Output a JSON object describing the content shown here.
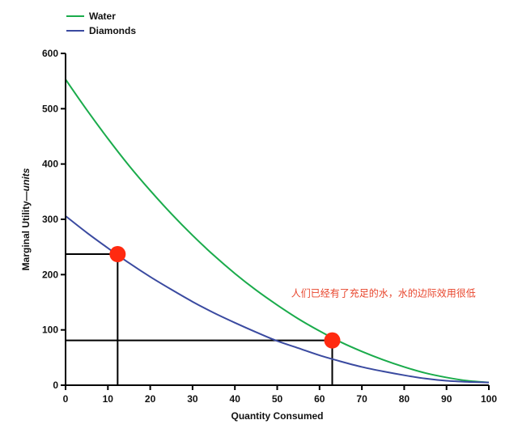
{
  "chart_data": {
    "type": "line",
    "title": "",
    "xlabel": "Quantity Consumed",
    "ylabel_main": "Marginal Utility—",
    "ylabel_unit": "units",
    "xlim": [
      0,
      100
    ],
    "ylim": [
      0,
      600
    ],
    "x_ticks": [
      0,
      10,
      20,
      30,
      40,
      50,
      60,
      70,
      80,
      90,
      100
    ],
    "y_ticks": [
      0,
      100,
      200,
      300,
      400,
      500,
      600
    ],
    "legend_position": "top-left",
    "series": [
      {
        "name": "Water",
        "color": "#1aab4b",
        "x": [
          0,
          5,
          10,
          15,
          20,
          25,
          30,
          35,
          40,
          45,
          50,
          55,
          60,
          65,
          70,
          75,
          80,
          85,
          90,
          95,
          100
        ],
        "y": [
          553,
          498,
          446,
          397,
          352,
          310,
          271,
          235,
          202,
          172,
          145,
          120,
          98,
          78,
          61,
          46,
          33,
          22,
          14,
          8,
          5
        ]
      },
      {
        "name": "Diamonds",
        "color": "#3a4aa0",
        "x": [
          0,
          5,
          10,
          15,
          20,
          25,
          30,
          35,
          40,
          45,
          50,
          55,
          60,
          65,
          70,
          75,
          80,
          85,
          90,
          95,
          100
        ],
        "y": [
          306,
          276,
          248,
          221,
          196,
          173,
          151,
          131,
          113,
          96,
          80,
          67,
          54,
          43,
          33,
          25,
          18,
          12,
          8,
          6,
          5
        ]
      }
    ],
    "highlight_points": [
      {
        "series": "Diamonds",
        "x": 12.3,
        "y": 237,
        "color": "#ff2a10"
      },
      {
        "series": "Water",
        "x": 63,
        "y": 81,
        "color": "#ff2a10"
      }
    ],
    "guides": [
      {
        "x": 12.3,
        "y": 237
      },
      {
        "x": 63,
        "y": 81
      }
    ],
    "annotation": {
      "text": "人们已经有了充足的水，水的边际效用很低",
      "x": 60,
      "y": 160,
      "color": "#e8452c"
    }
  }
}
